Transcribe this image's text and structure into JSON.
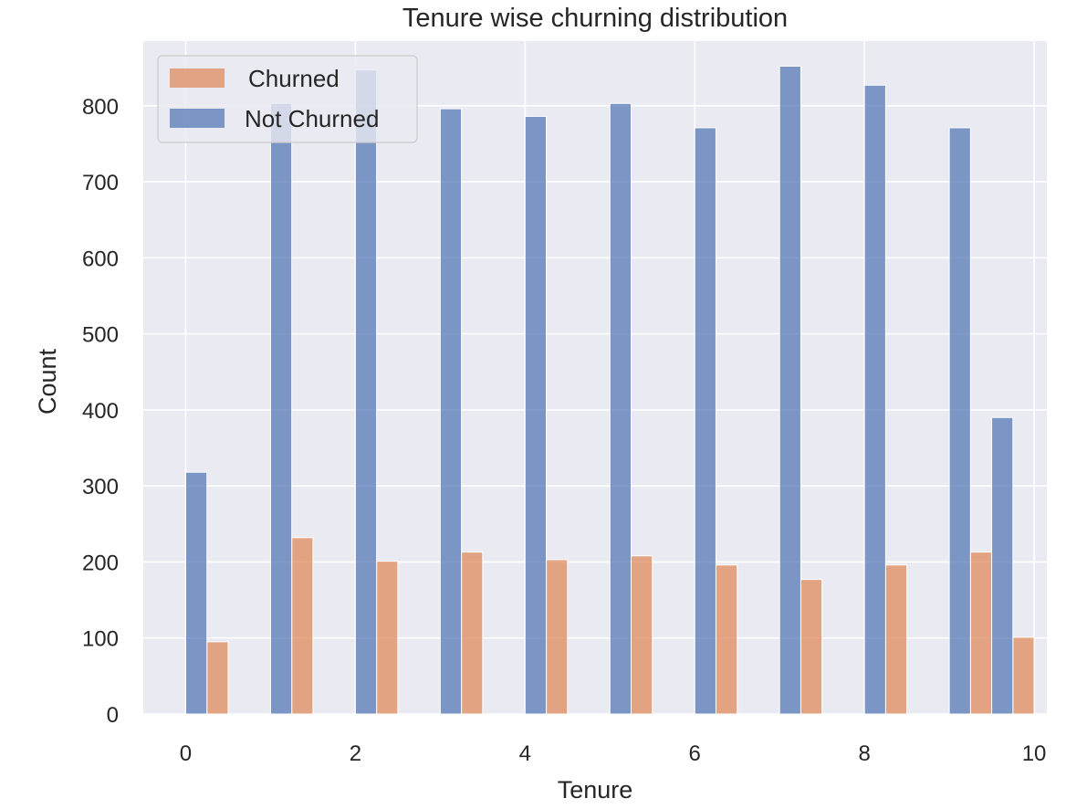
{
  "chart_data": {
    "type": "bar",
    "title": "Tenure wise churning distribution",
    "xlabel": "Tenure",
    "ylabel": "Count",
    "xlim": [
      -0.5,
      10.15
    ],
    "ylim": [
      0,
      885
    ],
    "x_ticks": [
      0,
      2,
      4,
      6,
      8,
      10
    ],
    "y_ticks": [
      0,
      100,
      200,
      300,
      400,
      500,
      600,
      700,
      800
    ],
    "grid": true,
    "legend_position": "top-left",
    "bar_width": 0.25,
    "series": [
      {
        "name": "Churned",
        "color": "#dd8452",
        "bins": [
          0.25,
          1.25,
          2.25,
          3.25,
          4.25,
          5.25,
          6.25,
          7.25,
          8.25,
          9.25,
          9.75
        ],
        "values": [
          95,
          232,
          201,
          213,
          203,
          208,
          196,
          177,
          196,
          213,
          101
        ]
      },
      {
        "name": "Not Churned",
        "color": "#4c72b0",
        "bins": [
          0,
          1,
          2,
          3,
          4,
          5,
          6,
          7,
          8,
          9,
          9.5
        ],
        "values": [
          318,
          803,
          847,
          796,
          786,
          803,
          771,
          852,
          827,
          771,
          390
        ]
      }
    ]
  }
}
